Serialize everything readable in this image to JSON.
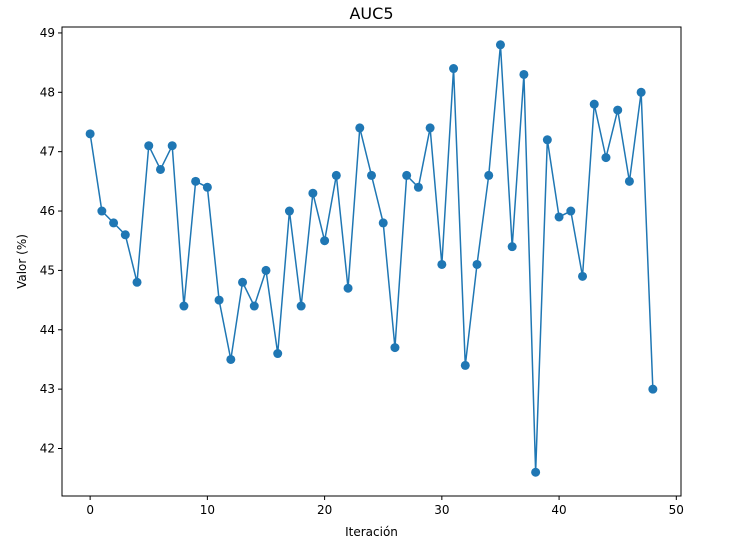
{
  "chart_data": {
    "type": "line",
    "title": "AUC5",
    "xlabel": "Iteración",
    "ylabel": "Valor (%)",
    "xlim": [
      -2.4,
      50.4
    ],
    "ylim": [
      41.2,
      49.1
    ],
    "xticks": [
      0,
      10,
      20,
      30,
      40,
      50
    ],
    "yticks": [
      42,
      43,
      44,
      45,
      46,
      47,
      48,
      49
    ],
    "grid": false,
    "marker": "circle",
    "series": [
      {
        "color": "#1f77b4",
        "x": [
          0,
          1,
          2,
          3,
          4,
          5,
          6,
          7,
          8,
          9,
          10,
          11,
          12,
          13,
          14,
          15,
          16,
          17,
          18,
          19,
          20,
          21,
          22,
          23,
          24,
          25,
          26,
          27,
          28,
          29,
          30,
          31,
          32,
          33,
          34,
          35,
          36,
          37,
          38,
          39,
          40,
          41,
          42,
          43,
          44,
          45,
          46,
          47,
          48
        ],
        "values": [
          47.3,
          46.0,
          45.8,
          45.6,
          44.8,
          47.1,
          46.7,
          47.1,
          44.4,
          46.5,
          46.4,
          44.5,
          43.5,
          44.8,
          44.4,
          45.0,
          43.6,
          46.0,
          44.4,
          46.3,
          45.5,
          46.6,
          44.7,
          47.4,
          46.6,
          45.8,
          43.7,
          46.6,
          46.4,
          47.4,
          45.1,
          48.4,
          43.4,
          45.1,
          46.6,
          48.8,
          45.4,
          48.3,
          41.6,
          47.2,
          45.9,
          46.0,
          44.9,
          47.8,
          46.9,
          47.7,
          46.5,
          48.0,
          43.0
        ]
      }
    ]
  }
}
